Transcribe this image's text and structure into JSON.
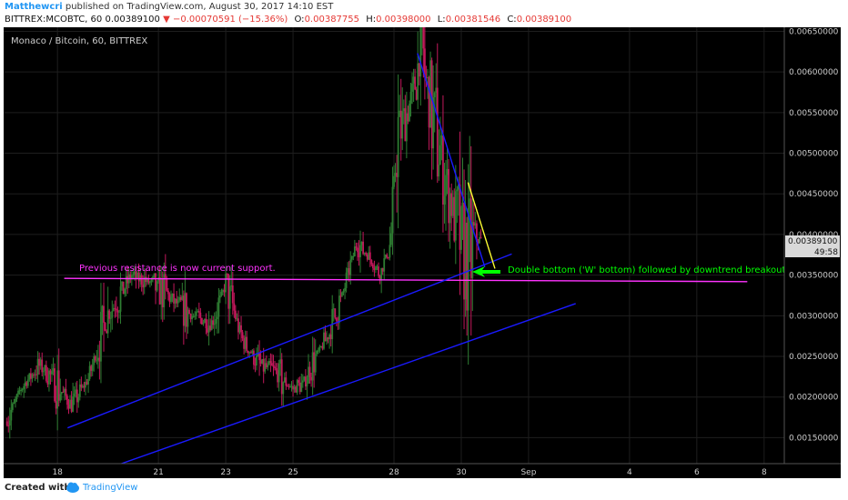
{
  "header": {
    "author": "Matthewcri",
    "published_text": "published on TradingView.com, August 30, 2017 14:10 EST",
    "symbol_text": "BITTREX:MCOBTC, 60",
    "last_price": "0.00389100",
    "change_text": "−0.00070591 (−15.36%)",
    "ohlc": [
      {
        "label": "O:",
        "value": "0.00387755"
      },
      {
        "label": "H:",
        "value": "0.00398000"
      },
      {
        "label": "L:",
        "value": "0.00381546"
      },
      {
        "label": "C:",
        "value": "0.00389100"
      }
    ]
  },
  "footer": {
    "created_with": "Created with",
    "brand": "TradingView"
  },
  "colors": {
    "background": "#000000",
    "grid": "#1e1e1e",
    "up_candle": "#2e7d32",
    "down_candle": "#c2185b",
    "channel": "#1a1aff",
    "support": "#ff33ff",
    "yellow": "#ffff33",
    "arrow": "#00ff00",
    "price_badge": "#d9d9d9",
    "axis_text": "#cccccc"
  },
  "chart_data": {
    "type": "candlestick",
    "title": "Monaco / Bitcoin, 60, BITTREX",
    "x_ticks": [
      "18",
      "21",
      "23",
      "25",
      "28",
      "30",
      "Sep",
      "4",
      "6",
      "8"
    ],
    "y_ticks": [
      "0.00650000",
      "0.00600000",
      "0.00550000",
      "0.00500000",
      "0.00450000",
      "0.00400000",
      "0.00350000",
      "0.00300000",
      "0.00250000",
      "0.00200000",
      "0.00150000"
    ],
    "y_range": [
      0.00118,
      0.00655
    ],
    "x_range_days": [
      16.4,
      39.6
    ],
    "tick_days": [
      18,
      21,
      23,
      25,
      28,
      30,
      32,
      35,
      37,
      39
    ],
    "last_price_label": "0.00389100",
    "countdown_label": "49:58",
    "path_days": [
      16.5,
      16.9,
      17.5,
      17.9,
      18.4,
      18.9,
      19.5,
      20.2,
      20.8,
      21.4,
      22.0,
      22.6,
      23.0,
      23.5,
      24.0,
      24.5,
      25.0,
      25.3,
      25.7,
      26.1,
      26.5,
      26.9,
      27.3,
      27.6,
      27.9,
      28.1,
      28.4,
      28.6,
      28.8,
      29.0,
      29.2,
      29.4,
      29.6,
      29.8,
      30.0,
      30.2,
      30.4,
      30.6
    ],
    "path_close": [
      0.0017,
      0.0021,
      0.0024,
      0.0022,
      0.0019,
      0.0022,
      0.003,
      0.0035,
      0.0034,
      0.0032,
      0.003,
      0.0029,
      0.0034,
      0.0027,
      0.0024,
      0.0023,
      0.0021,
      0.00215,
      0.0025,
      0.0028,
      0.0033,
      0.0039,
      0.0037,
      0.0035,
      0.0039,
      0.0052,
      0.0055,
      0.0058,
      0.0062,
      0.0058,
      0.0054,
      0.005,
      0.0046,
      0.0042,
      0.004,
      0.0036,
      0.004,
      0.0039
    ],
    "annotations": [
      {
        "text": "Previous resistance is now current support.",
        "color": "#ff33ff"
      },
      {
        "text": "Double bottom ('W' bottom) followed by downtrend breakout",
        "color": "#00ff00"
      }
    ],
    "lines": [
      {
        "name": "support-line",
        "color": "#ff33ff",
        "points": [
          [
            18.2,
            0.00346
          ],
          [
            38.5,
            0.00342
          ]
        ]
      },
      {
        "name": "channel-upper",
        "color": "#1a1aff",
        "points": [
          [
            18.3,
            0.00162
          ],
          [
            31.5,
            0.00376
          ]
        ]
      },
      {
        "name": "channel-lower",
        "color": "#1a1aff",
        "points": [
          [
            19.9,
            0.00118
          ],
          [
            33.4,
            0.00315
          ]
        ]
      },
      {
        "name": "downtrend-line",
        "color": "#1a1aff",
        "points": [
          [
            28.7,
            0.00623
          ],
          [
            30.7,
            0.0036
          ]
        ]
      },
      {
        "name": "yellow-trend-line",
        "color": "#ffff33",
        "points": [
          [
            30.2,
            0.00464
          ],
          [
            31.0,
            0.00358
          ]
        ]
      }
    ],
    "grid": true,
    "legend": "none"
  }
}
